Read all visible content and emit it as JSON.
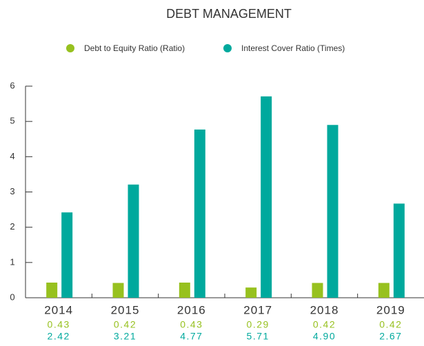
{
  "chart_data": {
    "type": "bar",
    "title": "DEBT MANAGEMENT",
    "categories": [
      "2014",
      "2015",
      "2016",
      "2017",
      "2018",
      "2019"
    ],
    "series": [
      {
        "name": "Debt to Equity Ratio (Ratio)",
        "color": "#97c11f",
        "values": [
          0.43,
          0.42,
          0.43,
          0.29,
          0.42,
          0.42
        ],
        "value_labels": [
          "0.43",
          "0.42",
          "0.43",
          "0.29",
          "0.42",
          "0.42"
        ]
      },
      {
        "name": "Interest Cover Ratio (Times)",
        "color": "#00a99d",
        "values": [
          2.42,
          3.21,
          4.77,
          5.71,
          4.9,
          2.67
        ],
        "value_labels": [
          "2.42",
          "3.21",
          "4.77",
          "5.71",
          "4.90",
          "2.67"
        ]
      }
    ],
    "ylim": [
      0,
      6
    ],
    "yticks": [
      0,
      1,
      2,
      3,
      4,
      5,
      6
    ],
    "legend": "top"
  }
}
